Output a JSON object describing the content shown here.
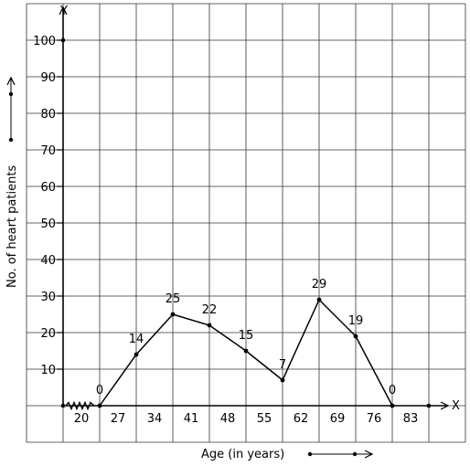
{
  "chart_data": {
    "type": "line",
    "title": "",
    "xlabel": "Age (in years)",
    "ylabel": "No. of heart patients",
    "x_axis_letter": "X",
    "y_axis_letter": "Y",
    "x_tick_labels": [
      "20",
      "27",
      "34",
      "41",
      "48",
      "55",
      "62",
      "69",
      "76",
      "83"
    ],
    "y_tick_labels": [
      "10",
      "20",
      "30",
      "40",
      "50",
      "60",
      "70",
      "80",
      "90",
      "100"
    ],
    "ylim": [
      0,
      100
    ],
    "x_ticks_range": [
      20,
      83
    ],
    "grid": true,
    "axis_break": true,
    "series": [
      {
        "x": [
          23.5,
          30.5,
          37.5,
          44.5,
          51.5,
          58.5,
          65.5,
          72.5,
          79.5
        ],
        "values": [
          0,
          14,
          25,
          22,
          15,
          7,
          29,
          19,
          0
        ],
        "labels": [
          "0",
          "14",
          "25",
          "22",
          "15",
          "7",
          "29",
          "19",
          "0"
        ]
      }
    ]
  }
}
